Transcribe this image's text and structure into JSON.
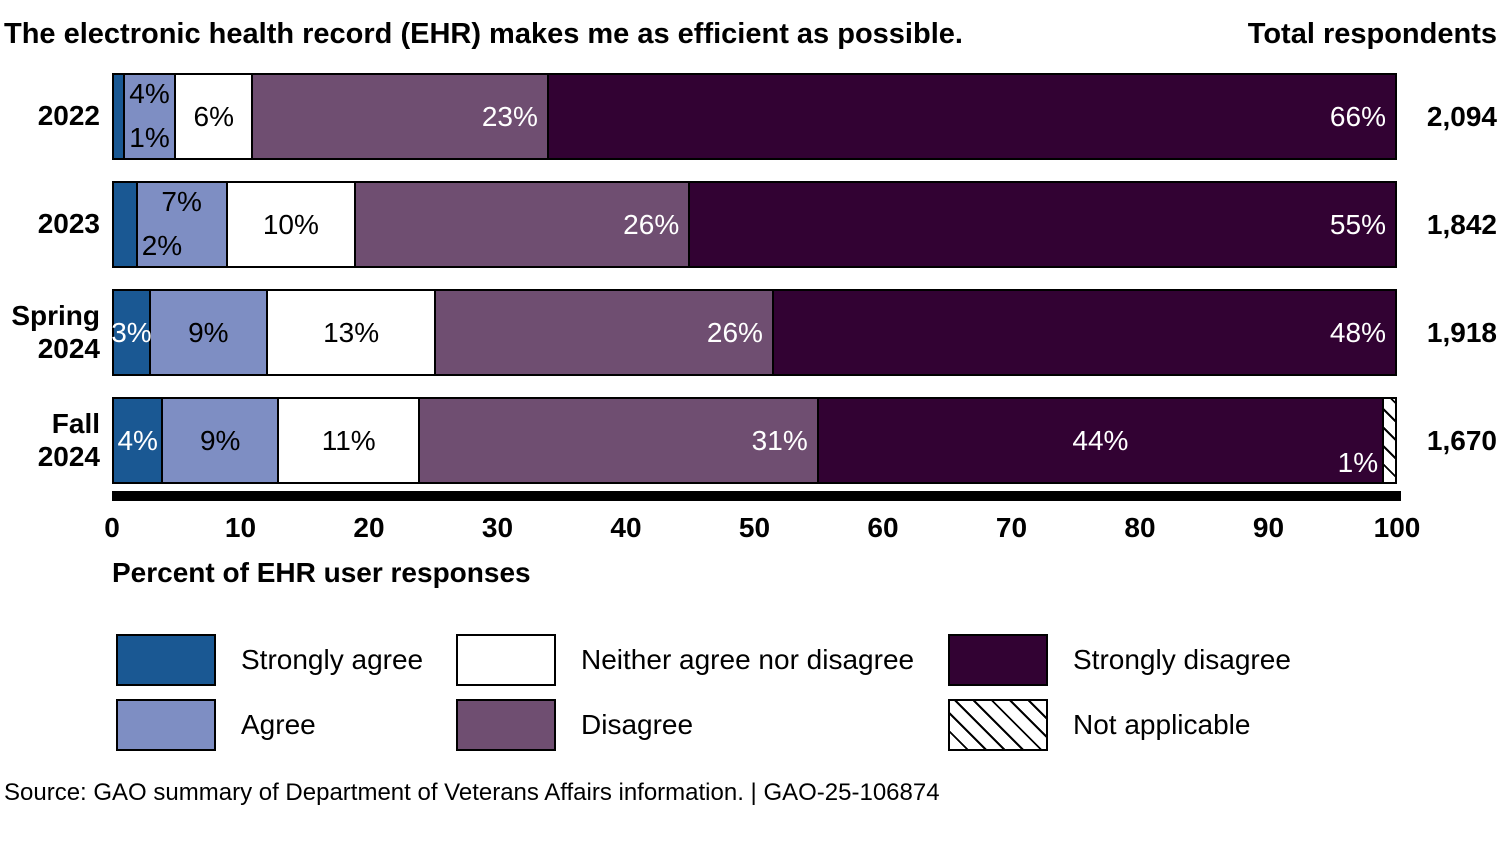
{
  "header": {
    "title": "The electronic health record (EHR) makes me as efficient as possible.",
    "right_label": "Total respondents"
  },
  "chart_data": {
    "type": "bar",
    "subtype": "horizontal-stacked-100pct",
    "title": "The electronic health record (EHR) makes me as efficient as possible.",
    "xlabel": "Percent of EHR user responses",
    "xlim": [
      0,
      100
    ],
    "xticks": [
      0,
      10,
      20,
      30,
      40,
      50,
      60,
      70,
      80,
      90,
      100
    ],
    "grid": false,
    "legend_position": "bottom",
    "legend": [
      {
        "name": "Strongly agree",
        "color": "#1A5893",
        "pattern": "solid"
      },
      {
        "name": "Agree",
        "color": "#7E8EC3",
        "pattern": "solid"
      },
      {
        "name": "Neither agree nor disagree",
        "color": "#FFFFFF",
        "pattern": "solid"
      },
      {
        "name": "Disagree",
        "color": "#6F4E71",
        "pattern": "solid"
      },
      {
        "name": "Strongly disagree",
        "color": "#320233",
        "pattern": "solid"
      },
      {
        "name": "Not applicable",
        "color": "#FFFFFF",
        "pattern": "hatch"
      }
    ],
    "categories": [
      "2022",
      "2023",
      "Spring 2024",
      "Fall 2024"
    ],
    "totals": [
      "2,094",
      "1,842",
      "1,918",
      "1,670"
    ],
    "rows": [
      {
        "category_lines": [
          "2022"
        ],
        "total": "2,094",
        "segments": [
          {
            "name": "Strongly agree",
            "value": 1,
            "labels": []
          },
          {
            "name": "Agree",
            "value": 4,
            "labels": [
              {
                "text": "4%",
                "pos": "top",
                "color": "#000000"
              },
              {
                "text": "1%",
                "pos": "bottom",
                "color": "#000000"
              }
            ]
          },
          {
            "name": "Neither agree nor disagree",
            "value": 6,
            "labels": [
              {
                "text": "6%",
                "pos": "center",
                "color": "#000000"
              }
            ]
          },
          {
            "name": "Disagree",
            "value": 23,
            "labels": [
              {
                "text": "23%",
                "pos": "right",
                "color": "#FFFFFF"
              }
            ]
          },
          {
            "name": "Strongly disagree",
            "value": 66,
            "labels": [
              {
                "text": "66%",
                "pos": "right",
                "color": "#FFFFFF"
              }
            ]
          }
        ]
      },
      {
        "category_lines": [
          "2023"
        ],
        "total": "1,842",
        "segments": [
          {
            "name": "Strongly agree",
            "value": 2,
            "labels": []
          },
          {
            "name": "Agree",
            "value": 7,
            "labels": [
              {
                "text": "7%",
                "pos": "top",
                "color": "#000000"
              },
              {
                "text": "2%",
                "pos": "bottom-left",
                "color": "#000000"
              }
            ]
          },
          {
            "name": "Neither agree nor disagree",
            "value": 10,
            "labels": [
              {
                "text": "10%",
                "pos": "center",
                "color": "#000000"
              }
            ]
          },
          {
            "name": "Disagree",
            "value": 26,
            "labels": [
              {
                "text": "26%",
                "pos": "right",
                "color": "#FFFFFF"
              }
            ]
          },
          {
            "name": "Strongly disagree",
            "value": 55,
            "labels": [
              {
                "text": "55%",
                "pos": "right",
                "color": "#FFFFFF"
              }
            ]
          }
        ]
      },
      {
        "category_lines": [
          "Spring",
          "2024"
        ],
        "total": "1,918",
        "segments": [
          {
            "name": "Strongly agree",
            "value": 3,
            "labels": [
              {
                "text": "3%",
                "pos": "center",
                "color": "#FFFFFF"
              }
            ]
          },
          {
            "name": "Agree",
            "value": 9,
            "labels": [
              {
                "text": "9%",
                "pos": "center",
                "color": "#000000"
              }
            ]
          },
          {
            "name": "Neither agree nor disagree",
            "value": 13,
            "labels": [
              {
                "text": "13%",
                "pos": "center",
                "color": "#000000"
              }
            ]
          },
          {
            "name": "Disagree",
            "value": 26,
            "labels": [
              {
                "text": "26%",
                "pos": "right",
                "color": "#FFFFFF"
              }
            ]
          },
          {
            "name": "Strongly disagree",
            "value": 48,
            "labels": [
              {
                "text": "48%",
                "pos": "right",
                "color": "#FFFFFF"
              }
            ]
          }
        ]
      },
      {
        "category_lines": [
          "Fall",
          "2024"
        ],
        "total": "1,670",
        "segments": [
          {
            "name": "Strongly agree",
            "value": 4,
            "labels": [
              {
                "text": "4%",
                "pos": "center",
                "color": "#FFFFFF"
              }
            ]
          },
          {
            "name": "Agree",
            "value": 9,
            "labels": [
              {
                "text": "9%",
                "pos": "center",
                "color": "#000000"
              }
            ]
          },
          {
            "name": "Neither agree nor disagree",
            "value": 11,
            "labels": [
              {
                "text": "11%",
                "pos": "center",
                "color": "#000000"
              }
            ]
          },
          {
            "name": "Disagree",
            "value": 31,
            "labels": [
              {
                "text": "31%",
                "pos": "right",
                "color": "#FFFFFF"
              }
            ]
          },
          {
            "name": "Strongly disagree",
            "value": 44,
            "labels": [
              {
                "text": "44%",
                "pos": "center",
                "color": "#FFFFFF"
              }
            ]
          },
          {
            "name": "Not applicable",
            "value": 1,
            "labels": [
              {
                "text": "1%",
                "pos": "outside-left",
                "color": "#FFFFFF"
              }
            ]
          }
        ]
      }
    ]
  },
  "footer": {
    "source": "Source: GAO summary of Department of Veterans Affairs information.  |  GAO-25-106874"
  }
}
